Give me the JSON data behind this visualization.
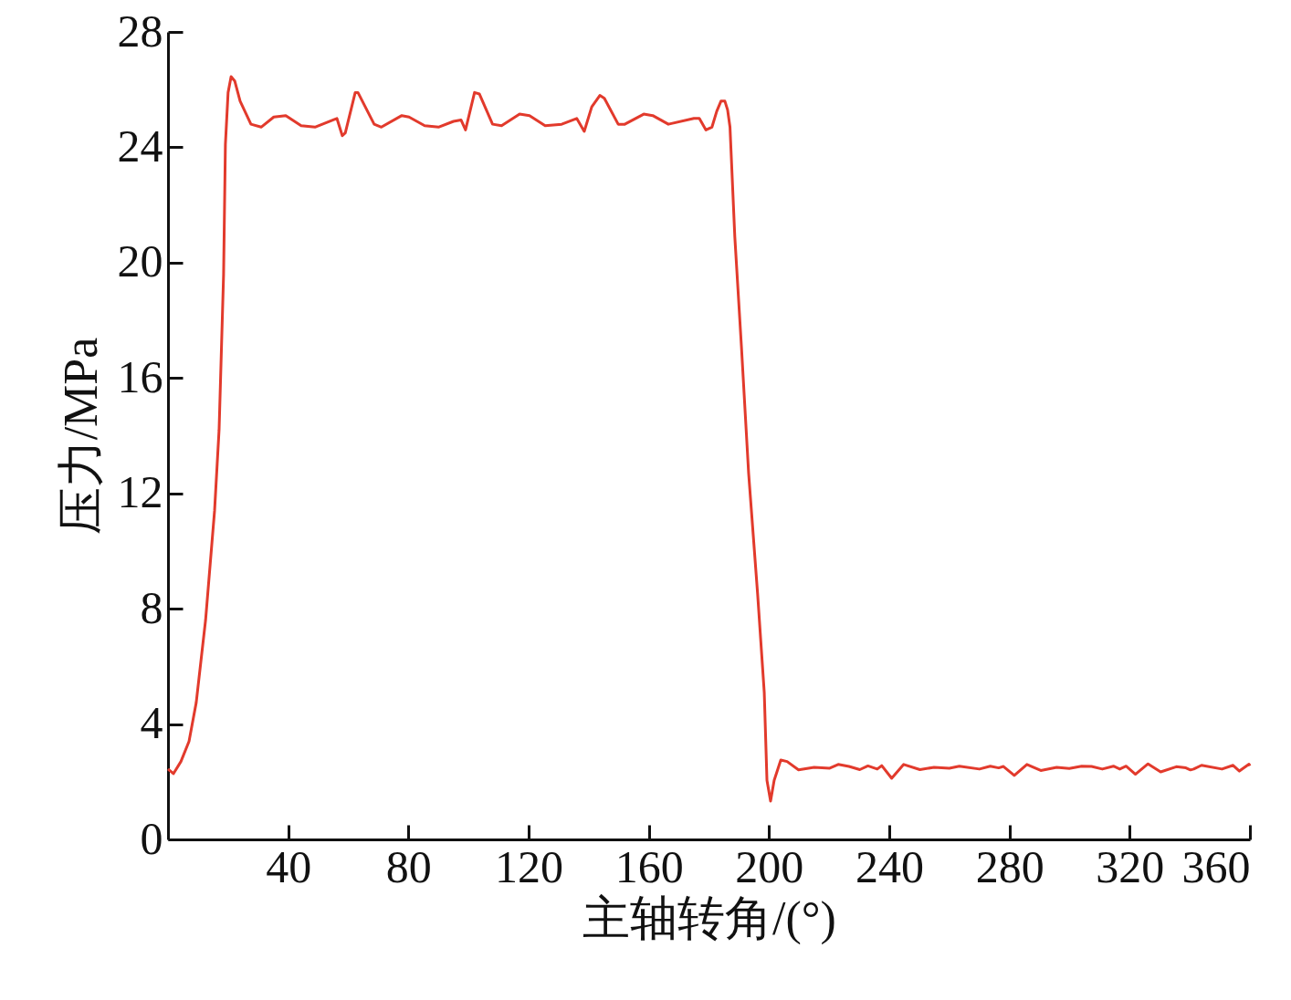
{
  "chart_data": {
    "type": "line",
    "xlabel": "主轴转角/(°)",
    "ylabel": "压力/MPa",
    "xlim": [
      0,
      360
    ],
    "ylim": [
      0,
      28
    ],
    "xticks": [
      40,
      80,
      120,
      160,
      200,
      240,
      280,
      320,
      360
    ],
    "yticks": [
      0,
      4,
      8,
      12,
      16,
      20,
      24,
      28
    ],
    "marker": "none",
    "line_style": "solid",
    "series": [
      {
        "color": "#e23a2c",
        "x": [
          0,
          1.8,
          4.3,
          7,
          9.4,
          12.5,
          15.5,
          17,
          18.5,
          19.1,
          20,
          21,
          22.2,
          24,
          27.6,
          31,
          35.2,
          39.2,
          44.3,
          48.9,
          55,
          56.2,
          58,
          59,
          62.3,
          63.2,
          68.6,
          71,
          77.8,
          80.2,
          85.4,
          90,
          95,
          97.5,
          99,
          102,
          103.6,
          108,
          111,
          117,
          120.3,
          125.5,
          131,
          136,
          138.5,
          141,
          143.7,
          145.2,
          149.8,
          152,
          158.3,
          161.3,
          166.5,
          175,
          176.8,
          179,
          181,
          182.6,
          184,
          185.3,
          186.2,
          187,
          188.6,
          190.8,
          193.2,
          196.2,
          198.4,
          199.3,
          200.5,
          201.7,
          203.9,
          206,
          209.8,
          215,
          220.2,
          223,
          226.6,
          230.2,
          232.9,
          236,
          237.5,
          240.8,
          244.8,
          250.2,
          254.9,
          260,
          263.3,
          270,
          273.6,
          276.4,
          278,
          281.6,
          285.8,
          290.4,
          295.7,
          299.9,
          304,
          307.3,
          310.9,
          314.6,
          316.7,
          318.8,
          321.9,
          326.1,
          330.3,
          335.5,
          338.7,
          340.2,
          341.3,
          343.9,
          350.7,
          354.4,
          356.5,
          359.7,
          360
        ],
        "values": [
          2.44,
          2.28,
          2.7,
          3.4,
          4.75,
          7.6,
          11.4,
          14.2,
          19.6,
          24.1,
          25.9,
          26.45,
          26.3,
          25.6,
          24.8,
          24.7,
          25.05,
          25.1,
          24.75,
          24.7,
          24.95,
          25,
          24.4,
          24.5,
          25.9,
          25.9,
          24.8,
          24.7,
          25.1,
          25.05,
          24.75,
          24.7,
          24.9,
          24.95,
          24.6,
          25.9,
          25.85,
          24.8,
          24.75,
          25.15,
          25.1,
          24.75,
          24.8,
          25,
          24.55,
          25.4,
          25.8,
          25.7,
          24.8,
          24.8,
          25.15,
          25.1,
          24.8,
          25,
          25,
          24.6,
          24.7,
          25.25,
          25.6,
          25.6,
          25.3,
          24.7,
          20.9,
          17.1,
          12.7,
          8.5,
          5.1,
          2.05,
          1.33,
          2.05,
          2.75,
          2.7,
          2.41,
          2.5,
          2.47,
          2.6,
          2.53,
          2.42,
          2.55,
          2.44,
          2.56,
          2.12,
          2.6,
          2.42,
          2.5,
          2.47,
          2.54,
          2.44,
          2.54,
          2.48,
          2.53,
          2.22,
          2.6,
          2.39,
          2.5,
          2.46,
          2.54,
          2.53,
          2.44,
          2.54,
          2.44,
          2.54,
          2.26,
          2.62,
          2.34,
          2.52,
          2.48,
          2.41,
          2.44,
          2.57,
          2.44,
          2.57,
          2.37,
          2.61,
          2.55
        ]
      }
    ]
  }
}
